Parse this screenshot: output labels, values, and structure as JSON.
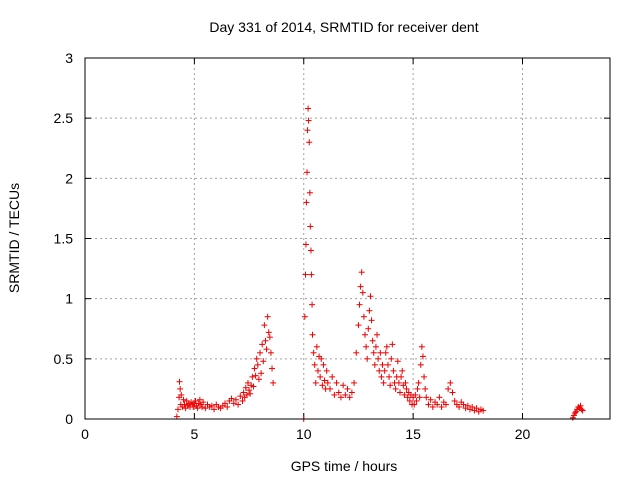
{
  "chart_data": {
    "type": "scatter",
    "title": "Day 331 of 2014, SRMTID for receiver dent",
    "xlabel": "GPS time / hours",
    "ylabel": "SRMTID / TECUs",
    "xlim": [
      0,
      24
    ],
    "ylim": [
      0,
      3
    ],
    "xticks": [
      0,
      5,
      10,
      15,
      20
    ],
    "yticks": [
      0,
      0.5,
      1,
      1.5,
      2,
      2.5,
      3
    ],
    "xtick_labels": [
      "0",
      "5",
      "10",
      "15",
      "20"
    ],
    "ytick_labels": [
      "0",
      "0.5",
      "1",
      "1.5",
      "2",
      "2.5",
      "3"
    ],
    "grid": true,
    "marker": "+",
    "color": "#ee0000",
    "series": [
      {
        "name": "SRMTID",
        "points": [
          [
            4.2,
            0.02
          ],
          [
            4.25,
            0.08
          ],
          [
            4.3,
            0.18
          ],
          [
            4.32,
            0.31
          ],
          [
            4.35,
            0.25
          ],
          [
            4.38,
            0.12
          ],
          [
            4.4,
            0.2
          ],
          [
            4.45,
            0.1
          ],
          [
            4.5,
            0.16
          ],
          [
            4.55,
            0.12
          ],
          [
            4.6,
            0.09
          ],
          [
            4.65,
            0.15
          ],
          [
            4.7,
            0.11
          ],
          [
            4.75,
            0.13
          ],
          [
            4.8,
            0.1
          ],
          [
            4.85,
            0.14
          ],
          [
            4.9,
            0.12
          ],
          [
            4.95,
            0.1
          ],
          [
            5.0,
            0.13
          ],
          [
            5.05,
            0.15
          ],
          [
            5.1,
            0.11
          ],
          [
            5.15,
            0.09
          ],
          [
            5.2,
            0.13
          ],
          [
            5.25,
            0.16
          ],
          [
            5.3,
            0.12
          ],
          [
            5.35,
            0.1
          ],
          [
            5.4,
            0.14
          ],
          [
            5.5,
            0.09
          ],
          [
            5.6,
            0.12
          ],
          [
            5.7,
            0.1
          ],
          [
            5.8,
            0.11
          ],
          [
            5.9,
            0.08
          ],
          [
            6.0,
            0.12
          ],
          [
            6.1,
            0.1
          ],
          [
            6.2,
            0.09
          ],
          [
            6.3,
            0.11
          ],
          [
            6.4,
            0.13
          ],
          [
            6.5,
            0.1
          ],
          [
            6.6,
            0.15
          ],
          [
            6.7,
            0.17
          ],
          [
            6.8,
            0.13
          ],
          [
            6.9,
            0.16
          ],
          [
            7.0,
            0.12
          ],
          [
            7.1,
            0.19
          ],
          [
            7.2,
            0.15
          ],
          [
            7.25,
            0.22
          ],
          [
            7.3,
            0.18
          ],
          [
            7.35,
            0.26
          ],
          [
            7.4,
            0.2
          ],
          [
            7.45,
            0.3
          ],
          [
            7.5,
            0.24
          ],
          [
            7.55,
            0.21
          ],
          [
            7.6,
            0.28
          ],
          [
            7.65,
            0.35
          ],
          [
            7.7,
            0.27
          ],
          [
            7.75,
            0.42
          ],
          [
            7.8,
            0.36
          ],
          [
            7.85,
            0.5
          ],
          [
            7.9,
            0.45
          ],
          [
            7.95,
            0.33
          ],
          [
            8.0,
            0.55
          ],
          [
            8.05,
            0.38
          ],
          [
            8.1,
            0.62
          ],
          [
            8.15,
            0.48
          ],
          [
            8.2,
            0.78
          ],
          [
            8.25,
            0.65
          ],
          [
            8.3,
            0.58
          ],
          [
            8.35,
            0.85
          ],
          [
            8.4,
            0.72
          ],
          [
            8.45,
            0.68
          ],
          [
            8.5,
            0.55
          ],
          [
            8.55,
            0.42
          ],
          [
            8.6,
            0.3
          ],
          [
            10.0,
            0.0
          ],
          [
            10.05,
            0.85
          ],
          [
            10.08,
            1.2
          ],
          [
            10.1,
            1.45
          ],
          [
            10.12,
            1.8
          ],
          [
            10.15,
            2.05
          ],
          [
            10.17,
            2.4
          ],
          [
            10.2,
            2.58
          ],
          [
            10.22,
            2.48
          ],
          [
            10.25,
            2.3
          ],
          [
            10.28,
            1.88
          ],
          [
            10.3,
            1.6
          ],
          [
            10.33,
            1.4
          ],
          [
            10.35,
            1.2
          ],
          [
            10.38,
            0.95
          ],
          [
            10.4,
            0.7
          ],
          [
            10.45,
            0.55
          ],
          [
            10.5,
            0.45
          ],
          [
            10.55,
            0.3
          ],
          [
            10.6,
            0.6
          ],
          [
            10.65,
            0.4
          ],
          [
            10.7,
            0.52
          ],
          [
            10.75,
            0.35
          ],
          [
            10.8,
            0.5
          ],
          [
            10.85,
            0.28
          ],
          [
            10.9,
            0.45
          ],
          [
            10.95,
            0.32
          ],
          [
            11.0,
            0.25
          ],
          [
            11.05,
            0.4
          ],
          [
            11.1,
            0.3
          ],
          [
            11.2,
            0.25
          ],
          [
            11.3,
            0.35
          ],
          [
            11.4,
            0.2
          ],
          [
            11.5,
            0.3
          ],
          [
            11.6,
            0.22
          ],
          [
            11.7,
            0.18
          ],
          [
            11.8,
            0.28
          ],
          [
            11.9,
            0.2
          ],
          [
            12.0,
            0.25
          ],
          [
            12.1,
            0.18
          ],
          [
            12.2,
            0.22
          ],
          [
            12.3,
            0.3
          ],
          [
            12.4,
            0.55
          ],
          [
            12.5,
            0.78
          ],
          [
            12.55,
            0.95
          ],
          [
            12.6,
            1.1
          ],
          [
            12.65,
            1.22
          ],
          [
            12.7,
            1.05
          ],
          [
            12.75,
            0.85
          ],
          [
            12.8,
            0.7
          ],
          [
            12.85,
            0.6
          ],
          [
            12.9,
            0.5
          ],
          [
            12.95,
            0.75
          ],
          [
            13.0,
            0.9
          ],
          [
            13.05,
            1.02
          ],
          [
            13.1,
            0.82
          ],
          [
            13.15,
            0.65
          ],
          [
            13.2,
            0.55
          ],
          [
            13.25,
            0.45
          ],
          [
            13.3,
            0.6
          ],
          [
            13.35,
            0.7
          ],
          [
            13.4,
            0.5
          ],
          [
            13.45,
            0.4
          ],
          [
            13.5,
            0.55
          ],
          [
            13.55,
            0.35
          ],
          [
            13.6,
            0.45
          ],
          [
            13.65,
            0.3
          ],
          [
            13.7,
            0.4
          ],
          [
            13.75,
            0.55
          ],
          [
            13.8,
            0.6
          ],
          [
            13.85,
            0.45
          ],
          [
            13.9,
            0.35
          ],
          [
            13.95,
            0.28
          ],
          [
            14.0,
            0.5
          ],
          [
            14.05,
            0.62
          ],
          [
            14.1,
            0.4
          ],
          [
            14.15,
            0.3
          ],
          [
            14.2,
            0.25
          ],
          [
            14.25,
            0.35
          ],
          [
            14.3,
            0.48
          ],
          [
            14.35,
            0.3
          ],
          [
            14.4,
            0.22
          ],
          [
            14.45,
            0.35
          ],
          [
            14.5,
            0.4
          ],
          [
            14.55,
            0.28
          ],
          [
            14.6,
            0.2
          ],
          [
            14.65,
            0.3
          ],
          [
            14.7,
            0.25
          ],
          [
            14.75,
            0.18
          ],
          [
            14.8,
            0.22
          ],
          [
            14.85,
            0.15
          ],
          [
            14.9,
            0.2
          ],
          [
            14.95,
            0.12
          ],
          [
            15.0,
            0.18
          ],
          [
            15.05,
            0.12
          ],
          [
            15.1,
            0.2
          ],
          [
            15.15,
            0.15
          ],
          [
            15.2,
            0.25
          ],
          [
            15.25,
            0.3
          ],
          [
            15.3,
            0.18
          ],
          [
            15.35,
            0.45
          ],
          [
            15.4,
            0.6
          ],
          [
            15.45,
            0.52
          ],
          [
            15.5,
            0.35
          ],
          [
            15.55,
            0.25
          ],
          [
            15.6,
            0.18
          ],
          [
            15.7,
            0.12
          ],
          [
            15.8,
            0.16
          ],
          [
            15.9,
            0.1
          ],
          [
            16.0,
            0.14
          ],
          [
            16.1,
            0.12
          ],
          [
            16.2,
            0.18
          ],
          [
            16.3,
            0.1
          ],
          [
            16.4,
            0.14
          ],
          [
            16.5,
            0.12
          ],
          [
            16.6,
            0.25
          ],
          [
            16.7,
            0.3
          ],
          [
            16.8,
            0.22
          ],
          [
            16.9,
            0.15
          ],
          [
            17.0,
            0.12
          ],
          [
            17.1,
            0.1
          ],
          [
            17.2,
            0.14
          ],
          [
            17.3,
            0.12
          ],
          [
            17.4,
            0.09
          ],
          [
            17.5,
            0.11
          ],
          [
            17.6,
            0.08
          ],
          [
            17.7,
            0.1
          ],
          [
            17.8,
            0.07
          ],
          [
            17.9,
            0.09
          ],
          [
            18.0,
            0.06
          ],
          [
            18.1,
            0.08
          ],
          [
            18.2,
            0.07
          ],
          [
            22.3,
            0.01
          ],
          [
            22.35,
            0.03
          ],
          [
            22.4,
            0.05
          ],
          [
            22.45,
            0.06
          ],
          [
            22.5,
            0.08
          ],
          [
            22.55,
            0.1
          ],
          [
            22.6,
            0.09
          ],
          [
            22.65,
            0.11
          ],
          [
            22.7,
            0.08
          ],
          [
            22.75,
            0.07
          ]
        ]
      }
    ]
  }
}
